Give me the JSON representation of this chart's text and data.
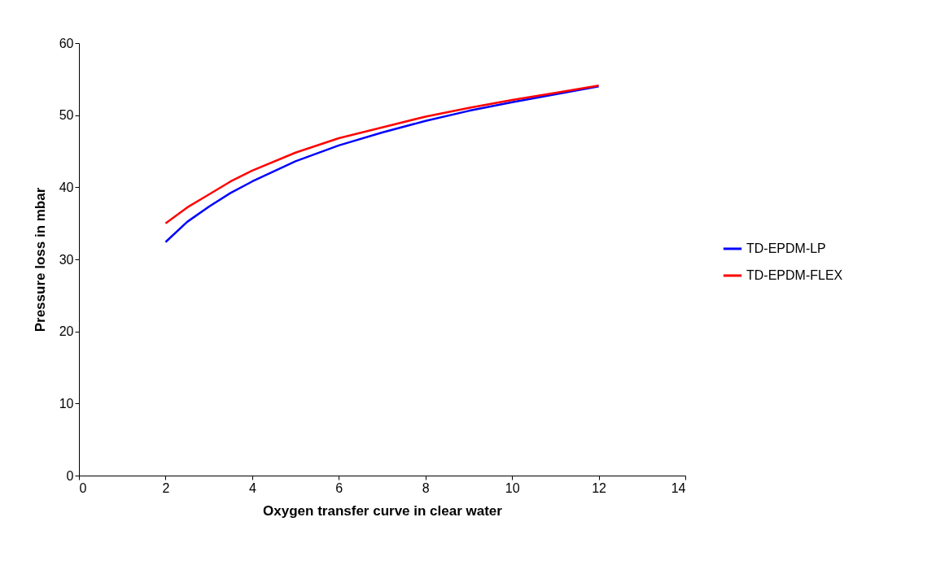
{
  "chart_data": {
    "type": "line",
    "xlabel": "Oxygen transfer curve in clear water",
    "ylabel": "Pressure loss in mbar",
    "x": [
      2,
      2.5,
      3,
      3.5,
      4,
      5,
      6,
      7,
      8,
      9,
      10,
      11,
      12
    ],
    "series": [
      {
        "name": "TD-EPDM-LP",
        "color": "#0000ff",
        "values": [
          32.4,
          35.2,
          37.3,
          39.2,
          40.8,
          43.6,
          45.8,
          47.6,
          49.2,
          50.6,
          51.8,
          52.9,
          54
        ]
      },
      {
        "name": "TD-EPDM-FLEX",
        "color": "#ff0000",
        "values": [
          35,
          37.2,
          39,
          40.8,
          42.3,
          44.8,
          46.8,
          48.3,
          49.8,
          51,
          52.1,
          53.1,
          54.1
        ]
      }
    ],
    "xlim": [
      0,
      14
    ],
    "xticks": [
      0,
      2,
      4,
      6,
      8,
      10,
      12,
      14
    ],
    "ylim": [
      0,
      60
    ],
    "yticks": [
      0,
      10,
      20,
      30,
      40,
      50,
      60
    ],
    "grid": false,
    "legend": "right",
    "marker": "none",
    "line_style": "solid"
  }
}
